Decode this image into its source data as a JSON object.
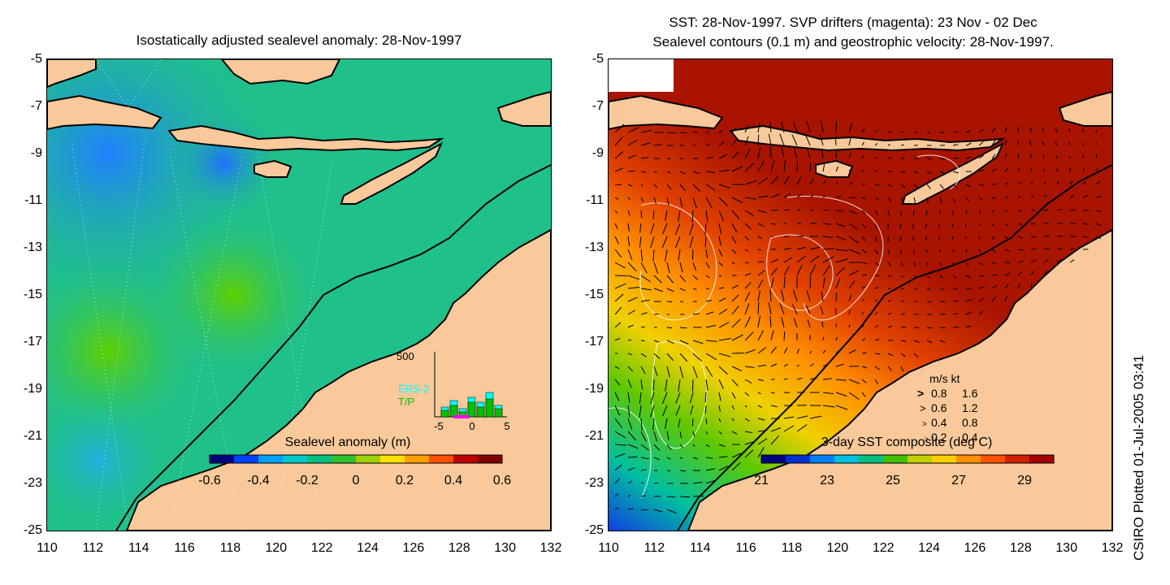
{
  "left_panel": {
    "title": "Isostatically adjusted sealevel anomaly: 28-Nov-1997",
    "colorbar": {
      "label": "Sealevel anomaly (m)",
      "ticks": [
        "-0.6",
        "-0.4",
        "-0.2",
        "0",
        "0.2",
        "0.4",
        "0.6"
      ],
      "colors": [
        "#00007f",
        "#0040ff",
        "#00a0ff",
        "#00c8c8",
        "#00c080",
        "#30c030",
        "#a0d000",
        "#ffe000",
        "#ffa000",
        "#ff5000",
        "#c00000",
        "#800000"
      ]
    },
    "inset": {
      "y_max_label": "500",
      "series": [
        "ERS-2",
        "T/P"
      ],
      "series_colors": [
        "#00ffff",
        "#00c000"
      ],
      "x_ticks": [
        "-5",
        "0",
        "5"
      ]
    }
  },
  "right_panel": {
    "title_line1": "SST: 28-Nov-1997. SVP drifters (magenta): 23 Nov - 02 Dec",
    "title_line2": "Sealevel contours (0.1 m) and geostrophic velocity: 28-Nov-1997.",
    "colorbar": {
      "label": "3-day SST composite (deg C)",
      "ticks": [
        "21",
        "23",
        "25",
        "27",
        "29"
      ],
      "colors": [
        "#00007f",
        "#0030d0",
        "#0080ff",
        "#00c0e0",
        "#00c080",
        "#40c000",
        "#c0d000",
        "#ffd000",
        "#ff9000",
        "#ff5000",
        "#d02000",
        "#a00000"
      ]
    },
    "speed_legend": {
      "header": "m/s  kt",
      "rows": [
        {
          "ms": "0.8",
          "kt": "1.6"
        },
        {
          "ms": "0.6",
          "kt": "1.2"
        },
        {
          "ms": "0.4",
          "kt": "0.8"
        },
        {
          "ms": "0.2",
          "kt": "0.4"
        }
      ]
    }
  },
  "axes": {
    "y_ticks": [
      "-5",
      "-7",
      "-9",
      "-11",
      "-13",
      "-15",
      "-17",
      "-19",
      "-21",
      "-23",
      "-25"
    ],
    "x_ticks": [
      "110",
      "112",
      "114",
      "116",
      "118",
      "120",
      "122",
      "124",
      "126",
      "128",
      "130",
      "132"
    ]
  },
  "credit": "CSIRO Plotted 01-Jul-2005 03:41",
  "colors": {
    "land": "#f9c99b",
    "coastline": "#000000",
    "ocean_left": "#20c08a",
    "ocean_right_warm": "#a81400"
  }
}
